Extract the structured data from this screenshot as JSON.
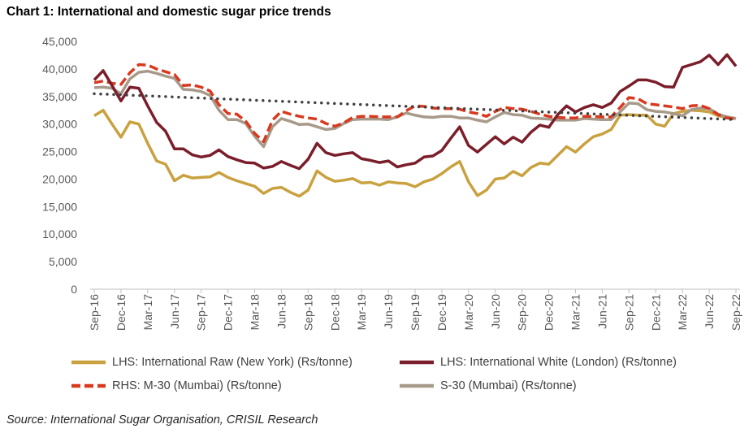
{
  "title": "Chart 1: International and domestic sugar price trends",
  "source": "Source: International Sugar Organisation, CRISIL Research",
  "chart_data": {
    "type": "line",
    "title": "Chart 1: International and domestic sugar price trends",
    "ylim": [
      0,
      45000
    ],
    "yticks": [
      "0",
      "5,000",
      "10,000",
      "15,000",
      "20,000",
      "25,000",
      "30,000",
      "35,000",
      "40,000",
      "45,000"
    ],
    "x": [
      "Sep-16",
      "Oct-16",
      "Nov-16",
      "Dec-16",
      "Jan-17",
      "Feb-17",
      "Mar-17",
      "Apr-17",
      "May-17",
      "Jun-17",
      "Jul-17",
      "Aug-17",
      "Sep-17",
      "Oct-17",
      "Nov-17",
      "Dec-17",
      "Jan-18",
      "Feb-18",
      "Mar-18",
      "Apr-18",
      "May-18",
      "Jun-18",
      "Jul-18",
      "Aug-18",
      "Sep-18",
      "Oct-18",
      "Nov-18",
      "Dec-18",
      "Jan-19",
      "Feb-19",
      "Mar-19",
      "Apr-19",
      "May-19",
      "Jun-19",
      "Jul-19",
      "Aug-19",
      "Sep-19",
      "Oct-19",
      "Nov-19",
      "Dec-19",
      "Jan-20",
      "Feb-20",
      "Mar-20",
      "Apr-20",
      "May-20",
      "Jun-20",
      "Jul-20",
      "Aug-20",
      "Sep-20",
      "Oct-20",
      "Nov-20",
      "Dec-20",
      "Jan-21",
      "Feb-21",
      "Mar-21",
      "Apr-21",
      "May-21",
      "Jun-21",
      "Jul-21",
      "Aug-21",
      "Sep-21",
      "Oct-21",
      "Nov-21",
      "Dec-21",
      "Jan-22",
      "Feb-22",
      "Mar-22",
      "Apr-22",
      "May-22",
      "Jun-22",
      "Jul-22",
      "Aug-22",
      "Sep-22"
    ],
    "xticks": [
      "Sep-16",
      "Dec-16",
      "Mar-17",
      "Jun-17",
      "Sep-17",
      "Dec-17",
      "Mar-18",
      "Jun-18",
      "Sep-18",
      "Dec-18",
      "Mar-19",
      "Jun-19",
      "Sep-19",
      "Dec-19",
      "Mar-20",
      "Jun-20",
      "Sep-20",
      "Dec-20",
      "Mar-21",
      "Jun-21",
      "Sep-21",
      "Dec-21",
      "Mar-22",
      "Jun-22",
      "Sep-22"
    ],
    "grid": false,
    "legend_placement": "bottom",
    "series": [
      {
        "name": "LHS: International Raw (New York) (Rs/tonne)",
        "color": "#C9A13F",
        "style": "solid",
        "values": [
          31500,
          32500,
          30000,
          27600,
          30400,
          30000,
          26500,
          23300,
          22700,
          19700,
          20700,
          20200,
          20300,
          20400,
          21200,
          20300,
          19700,
          19200,
          18700,
          17400,
          18300,
          18500,
          17600,
          16900,
          18000,
          21500,
          20300,
          19600,
          19800,
          20100,
          19300,
          19400,
          18900,
          19500,
          19300,
          19200,
          18600,
          19500,
          20000,
          21000,
          22200,
          23200,
          19500,
          17000,
          18000,
          20000,
          20200,
          21400,
          20600,
          22100,
          22900,
          22700,
          24300,
          25900,
          24900,
          26400,
          27700,
          28200,
          29000,
          31600,
          31700,
          31600,
          31600,
          30000,
          29600,
          31900,
          32300,
          32500,
          32400,
          32200,
          31500,
          31200,
          31000
        ]
      },
      {
        "name": "LHS: International White (London) (Rs/tonne)",
        "color": "#7B1E2B",
        "style": "solid",
        "values": [
          38000,
          39700,
          37000,
          34200,
          36700,
          36500,
          33300,
          30300,
          28700,
          25500,
          25500,
          24400,
          24000,
          24300,
          25300,
          24100,
          23500,
          23000,
          22900,
          22000,
          22300,
          23200,
          22500,
          21900,
          23600,
          26500,
          24800,
          24300,
          24600,
          24800,
          23700,
          23400,
          23000,
          23300,
          22200,
          22600,
          22900,
          24000,
          24200,
          25200,
          27400,
          29500,
          26100,
          24900,
          26300,
          27700,
          26400,
          27600,
          26700,
          28500,
          29800,
          29400,
          31700,
          33300,
          32200,
          33000,
          33500,
          33000,
          33800,
          35900,
          36900,
          38000,
          38000,
          37600,
          36800,
          36700,
          40300,
          40800,
          41300,
          42500,
          40800,
          42600,
          40500
        ]
      },
      {
        "name": "RHS: M-30 (Mumbai) (Rs/tonne)",
        "color": "#D9391E",
        "style": "dashed",
        "values": [
          37500,
          37800,
          37400,
          37200,
          39300,
          40800,
          40700,
          40000,
          39500,
          39000,
          37000,
          37100,
          36700,
          36000,
          33500,
          31900,
          31800,
          30500,
          28300,
          26800,
          30700,
          32300,
          31800,
          31400,
          31100,
          30900,
          30100,
          29600,
          30200,
          31200,
          31400,
          31400,
          31300,
          31300,
          31300,
          32400,
          33300,
          33200,
          32900,
          32800,
          32800,
          32700,
          32200,
          31900,
          31400,
          32300,
          33000,
          32800,
          32700,
          32300,
          31800,
          31400,
          31200,
          31100,
          31100,
          31400,
          31400,
          31300,
          31300,
          33000,
          34800,
          34600,
          33700,
          33500,
          33300,
          33100,
          32800,
          33300,
          33400,
          32800,
          31700,
          31100,
          30900
        ]
      },
      {
        "name": "S-30 (Mumbai) (Rs/tonne)",
        "color": "#A89A8A",
        "style": "solid",
        "values": [
          36600,
          36700,
          36500,
          35500,
          38200,
          39400,
          39600,
          39200,
          38700,
          38300,
          36300,
          36200,
          35900,
          35200,
          32500,
          30800,
          30800,
          30100,
          27800,
          25900,
          29500,
          31000,
          30500,
          29900,
          30000,
          29500,
          29000,
          29200,
          30100,
          30800,
          30900,
          30900,
          30900,
          30800,
          31300,
          32000,
          31600,
          31300,
          31200,
          31400,
          31400,
          31100,
          31100,
          30700,
          30400,
          31300,
          32100,
          31700,
          31600,
          31100,
          31000,
          30900,
          30700,
          30700,
          30700,
          31000,
          30900,
          30800,
          30800,
          32200,
          33800,
          33700,
          32600,
          32300,
          32200,
          31900,
          31500,
          32600,
          32900,
          32800,
          31800,
          31300,
          31000
        ]
      }
    ],
    "trendline": {
      "color": "#404040",
      "style": "dotted",
      "start": 35500,
      "end": 30800
    }
  }
}
